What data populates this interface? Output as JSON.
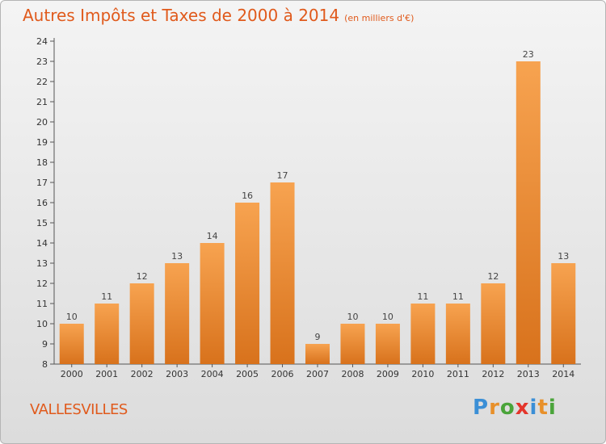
{
  "header": {
    "title": "Autres Impôts et Taxes de 2000 à 2014",
    "subtitle": "(en milliers d'€)"
  },
  "footer": {
    "commune": "VALLESVILLES",
    "logo": "Proxiti"
  },
  "colors": {
    "bar_top": "#f7a350",
    "bar_bottom": "#d8721c",
    "title": "#e05a1c"
  },
  "chart_data": {
    "type": "bar",
    "title": "Autres Impôts et Taxes de 2000 à 2014",
    "subtitle": "(en milliers d'€)",
    "categories": [
      "2000",
      "2001",
      "2002",
      "2003",
      "2004",
      "2005",
      "2006",
      "2007",
      "2008",
      "2009",
      "2010",
      "2011",
      "2012",
      "2013",
      "2014"
    ],
    "values": [
      10,
      11,
      12,
      13,
      14,
      16,
      17,
      9,
      10,
      10,
      11,
      11,
      12,
      23,
      13
    ],
    "ylim": [
      8,
      24
    ],
    "yticks": [
      8,
      9,
      10,
      11,
      12,
      13,
      14,
      15,
      16,
      17,
      18,
      19,
      20,
      21,
      22,
      23,
      24
    ],
    "grid": false,
    "legend": "none"
  }
}
